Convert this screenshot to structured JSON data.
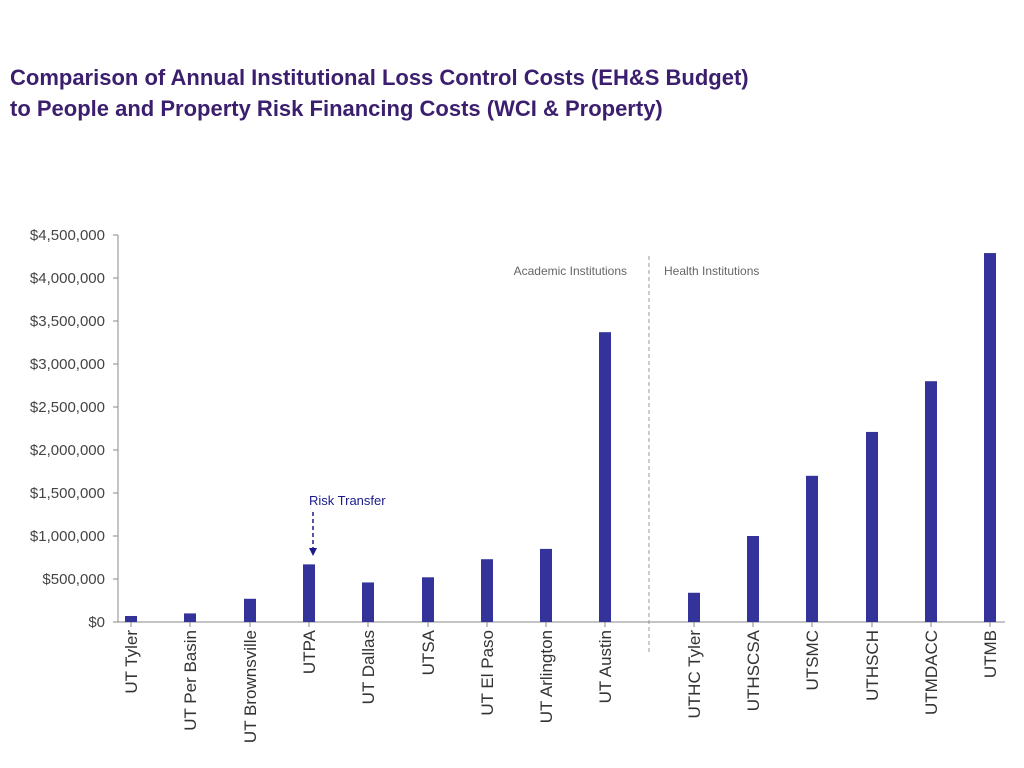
{
  "title": {
    "line1": "Comparison of Annual Institutional Loss Control Costs (EH&S Budget)",
    "line2": "to People and Property Risk Financing Costs (WCI & Property)"
  },
  "colors": {
    "bar": "#333399",
    "title": "#3b1f6e",
    "annotation": "#1a1a8c",
    "divider": "#999999"
  },
  "chart_data": {
    "type": "bar",
    "categories": [
      "UT Tyler",
      "UT Per Basin",
      "UT Brownsville",
      "UTPA",
      "UT Dallas",
      "UTSA",
      "UT El Paso",
      "UT Arlington",
      "UT Austin",
      "UTHC Tyler",
      "UTHSCSA",
      "UTSMC",
      "UTHSCH",
      "UTMDACC",
      "UTMB"
    ],
    "values": [
      70000,
      100000,
      270000,
      670000,
      460000,
      520000,
      730000,
      850000,
      3370000,
      340000,
      1000000,
      1700000,
      2210000,
      2800000,
      4290000
    ],
    "ylim": [
      0,
      4500000
    ],
    "yticks": [
      0,
      500000,
      1000000,
      1500000,
      2000000,
      2500000,
      3000000,
      3500000,
      4000000,
      4500000
    ],
    "ytick_labels": [
      "$0",
      "$500,000",
      "$1,000,000",
      "$1,500,000",
      "$2,000,000",
      "$2,500,000",
      "$3,000,000",
      "$3,500,000",
      "$4,000,000",
      "$4,500,000"
    ],
    "xlabel": "",
    "ylabel": "",
    "grid": false,
    "legend": "none",
    "group_labels": {
      "left": "Academic Institutions",
      "right": "Health Institutions"
    },
    "annotation": {
      "text": "Risk Transfer",
      "category": "UTPA"
    }
  }
}
